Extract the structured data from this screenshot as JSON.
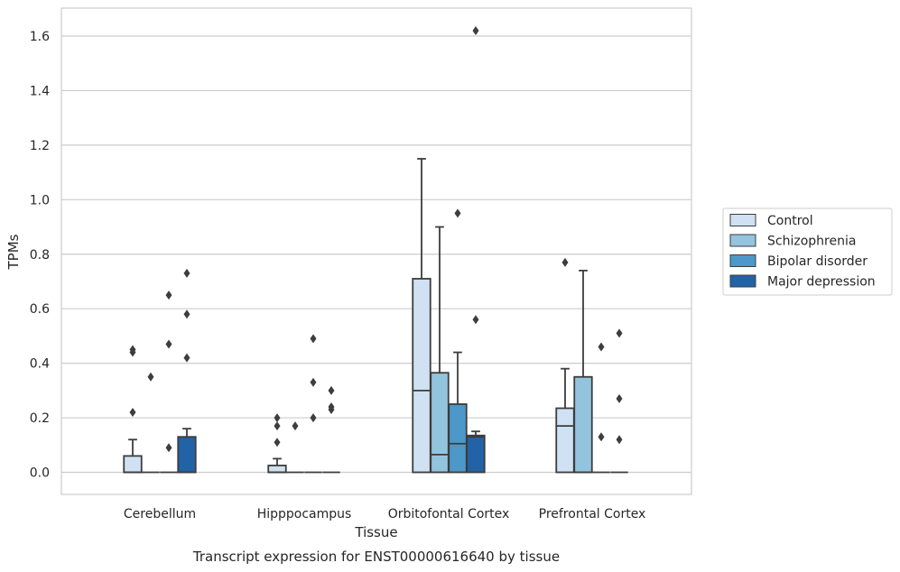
{
  "chart_data": {
    "type": "box",
    "xlabel": "Tissue",
    "ylabel": "TPMs",
    "caption": "Transcript expression for ENST00000616640 by tissue",
    "categories": [
      "Cerebellum",
      "Hipppocampus",
      "Orbitofontal Cortex",
      "Prefrontal Cortex"
    ],
    "ylim": [
      -0.08,
      1.7
    ],
    "yticks": [
      0.0,
      0.2,
      0.4,
      0.6,
      0.8,
      1.0,
      1.2,
      1.4,
      1.6
    ],
    "ytick_labels": [
      "0.0",
      "0.2",
      "0.4",
      "0.6",
      "0.8",
      "1.0",
      "1.2",
      "1.4",
      "1.6"
    ],
    "grid": "horizontal",
    "legend_position": "outside-right",
    "series": [
      {
        "name": "Control",
        "color": "#cfe1f2",
        "boxes": [
          {
            "q1": 0.0,
            "median": 0.0,
            "q3": 0.06,
            "whisker_low": 0.0,
            "whisker_high": 0.12,
            "outliers": [
              0.22,
              0.44,
              0.45
            ]
          },
          {
            "q1": 0.0,
            "median": 0.0,
            "q3": 0.025,
            "whisker_low": 0.0,
            "whisker_high": 0.05,
            "outliers": [
              0.11,
              0.17,
              0.2
            ]
          },
          {
            "q1": 0.0,
            "median": 0.3,
            "q3": 0.71,
            "whisker_low": 0.0,
            "whisker_high": 1.15,
            "outliers": []
          },
          {
            "q1": 0.0,
            "median": 0.17,
            "q3": 0.235,
            "whisker_low": 0.0,
            "whisker_high": 0.38,
            "outliers": [
              0.77
            ]
          }
        ]
      },
      {
        "name": "Schizophrenia",
        "color": "#93c4de",
        "boxes": [
          {
            "q1": 0.0,
            "median": 0.0,
            "q3": 0.0,
            "whisker_low": 0.0,
            "whisker_high": 0.0,
            "outliers": [
              0.35
            ]
          },
          {
            "q1": 0.0,
            "median": 0.0,
            "q3": 0.0,
            "whisker_low": 0.0,
            "whisker_high": 0.0,
            "outliers": [
              0.17
            ]
          },
          {
            "q1": 0.0,
            "median": 0.065,
            "q3": 0.365,
            "whisker_low": 0.0,
            "whisker_high": 0.9,
            "outliers": []
          },
          {
            "q1": 0.0,
            "median": 0.0,
            "q3": 0.35,
            "whisker_low": 0.0,
            "whisker_high": 0.74,
            "outliers": []
          }
        ]
      },
      {
        "name": "Bipolar disorder",
        "color": "#4b98c9",
        "boxes": [
          {
            "q1": 0.0,
            "median": 0.0,
            "q3": 0.0,
            "whisker_low": 0.0,
            "whisker_high": 0.0,
            "outliers": [
              0.09,
              0.47,
              0.65
            ]
          },
          {
            "q1": 0.0,
            "median": 0.0,
            "q3": 0.0,
            "whisker_low": 0.0,
            "whisker_high": 0.0,
            "outliers": [
              0.2,
              0.33,
              0.49
            ]
          },
          {
            "q1": 0.0,
            "median": 0.105,
            "q3": 0.25,
            "whisker_low": 0.0,
            "whisker_high": 0.44,
            "outliers": [
              0.95
            ]
          },
          {
            "q1": 0.0,
            "median": 0.0,
            "q3": 0.0,
            "whisker_low": 0.0,
            "whisker_high": 0.0,
            "outliers": [
              0.13,
              0.46
            ]
          }
        ]
      },
      {
        "name": "Major depression",
        "color": "#2163a6",
        "boxes": [
          {
            "q1": 0.0,
            "median": 0.0,
            "q3": 0.13,
            "whisker_low": 0.0,
            "whisker_high": 0.16,
            "outliers": [
              0.42,
              0.58,
              0.73
            ]
          },
          {
            "q1": 0.0,
            "median": 0.0,
            "q3": 0.0,
            "whisker_low": 0.0,
            "whisker_high": 0.0,
            "outliers": [
              0.23,
              0.24,
              0.3
            ]
          },
          {
            "q1": 0.0,
            "median": 0.13,
            "q3": 0.135,
            "whisker_low": 0.0,
            "whisker_high": 0.15,
            "outliers": [
              0.56,
              1.62
            ]
          },
          {
            "q1": 0.0,
            "median": 0.0,
            "q3": 0.0,
            "whisker_low": 0.0,
            "whisker_high": 0.0,
            "outliers": [
              0.12,
              0.27,
              0.51
            ]
          }
        ]
      }
    ]
  }
}
